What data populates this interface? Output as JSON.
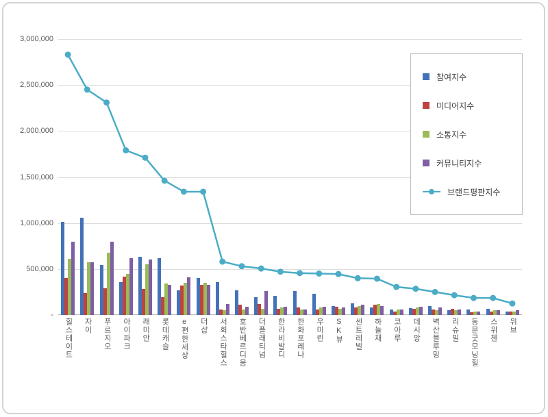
{
  "chart_data": {
    "type": "bar",
    "subtype": "grouped-bars-with-line-overlay",
    "title": "",
    "xlabel": "",
    "ylabel": "",
    "grid": true,
    "legend_position": "right-top",
    "categories": [
      "힐스테이트",
      "자이",
      "푸르지오",
      "아이파크",
      "래미안",
      "롯데캐슬",
      "e편한세상",
      "더샵",
      "서희스타힐스",
      "호반베르디움",
      "더플래티넘",
      "한라비발디",
      "한화포레나",
      "우미린",
      "SK뷰",
      "센트레빌",
      "하늘채",
      "코아루",
      "데시앙",
      "벽산블루밍",
      "리슈빌",
      "동문굿모닝힐",
      "스위첸",
      "위브"
    ],
    "bar_series": [
      {
        "name": "참여지수",
        "color": "#4472b8",
        "values": [
          1010000,
          1060000,
          540000,
          360000,
          630000,
          620000,
          270000,
          400000,
          360000,
          270000,
          190000,
          210000,
          260000,
          230000,
          100000,
          130000,
          80000,
          60000,
          75000,
          100000,
          55000,
          60000,
          70000,
          40000
        ]
      },
      {
        "name": "미디어지수",
        "color": "#bf4340",
        "values": [
          400000,
          240000,
          290000,
          420000,
          280000,
          190000,
          320000,
          330000,
          60000,
          110000,
          120000,
          70000,
          80000,
          60000,
          90000,
          80000,
          110000,
          40000,
          70000,
          60000,
          70000,
          30000,
          40000,
          40000
        ]
      },
      {
        "name": "소통지수",
        "color": "#9bbb59",
        "values": [
          610000,
          570000,
          680000,
          450000,
          550000,
          340000,
          350000,
          350000,
          50000,
          60000,
          70000,
          80000,
          60000,
          80000,
          70000,
          100000,
          120000,
          60000,
          80000,
          50000,
          50000,
          40000,
          50000,
          40000
        ]
      },
      {
        "name": "커뮤니티지수",
        "color": "#7f5fa4",
        "values": [
          800000,
          570000,
          800000,
          620000,
          600000,
          330000,
          410000,
          330000,
          120000,
          90000,
          260000,
          90000,
          60000,
          90000,
          80000,
          110000,
          100000,
          60000,
          90000,
          80000,
          60000,
          40000,
          50000,
          50000
        ]
      }
    ],
    "line_series": {
      "name": "브랜드평판지수",
      "color": "#4bacc6",
      "values": [
        2830000,
        2450000,
        2310000,
        1790000,
        1710000,
        1460000,
        1340000,
        1340000,
        580000,
        530000,
        505000,
        470000,
        455000,
        450000,
        445000,
        400000,
        395000,
        305000,
        285000,
        250000,
        215000,
        185000,
        185000,
        125000
      ]
    },
    "y_axis": {
      "min": 0,
      "max": 3000000,
      "step": 500000,
      "tick_labels": [
        "-",
        "500,000",
        "1,000,000",
        "1,500,000",
        "2,000,000",
        "2,500,000",
        "3,000,000"
      ]
    }
  }
}
